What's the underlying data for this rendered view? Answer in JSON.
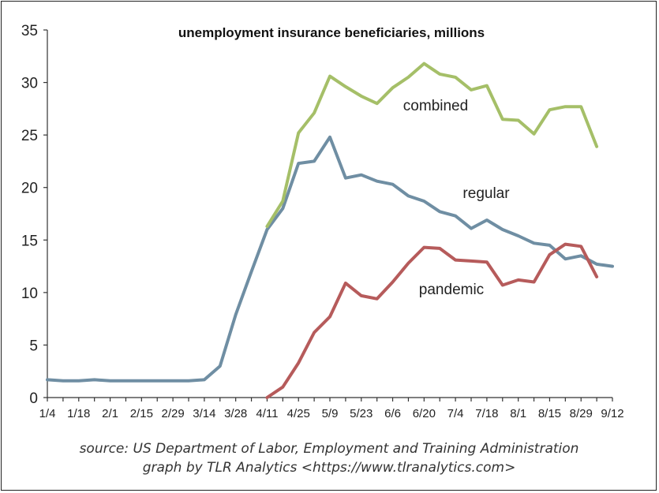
{
  "chart_data": {
    "type": "line",
    "title": "unemployment insurance beneficiaries, millions",
    "xlabel": "",
    "ylabel": "",
    "ylim": [
      0,
      35
    ],
    "yticks": [
      0,
      5,
      10,
      15,
      20,
      25,
      30,
      35
    ],
    "x_tick_labels": [
      "1/4",
      "1/18",
      "2/1",
      "2/15",
      "2/29",
      "3/14",
      "3/28",
      "4/11",
      "4/25",
      "5/9",
      "5/23",
      "6/6",
      "6/20",
      "7/4",
      "7/18",
      "8/1",
      "8/15",
      "8/29",
      "9/12"
    ],
    "grid": false,
    "legend": "none (series labeled inline)",
    "series": [
      {
        "name": "regular",
        "color": "#6f8ea3",
        "values": [
          1.7,
          1.6,
          1.6,
          1.7,
          1.6,
          1.6,
          1.6,
          1.6,
          1.6,
          1.6,
          1.7,
          3.0,
          7.9,
          12.0,
          16.0,
          18.0,
          22.3,
          22.5,
          24.8,
          20.9,
          21.2,
          20.6,
          20.3,
          19.2,
          18.7,
          17.7,
          17.3,
          16.1,
          16.9,
          16.0,
          15.4,
          14.7,
          14.5,
          13.2,
          13.5,
          12.7,
          12.5
        ],
        "start_index": 0
      },
      {
        "name": "combined",
        "color": "#a5bf68",
        "values": [
          16.3,
          18.7,
          25.2,
          27.1,
          30.6,
          29.6,
          28.7,
          28.0,
          29.5,
          30.5,
          31.8,
          30.8,
          30.5,
          29.3,
          29.7,
          26.5,
          26.4,
          25.1,
          27.4,
          27.7,
          27.7,
          23.9
        ],
        "start_index": 14
      },
      {
        "name": "pandemic",
        "color": "#b65b5b",
        "values": [
          0.0,
          1.0,
          3.3,
          6.2,
          7.7,
          10.9,
          9.7,
          9.4,
          11.0,
          12.8,
          14.3,
          14.2,
          13.1,
          13.0,
          12.9,
          10.7,
          11.2,
          11.0,
          13.6,
          14.6,
          14.4,
          11.5
        ],
        "start_index": 14
      }
    ],
    "source_line1": "source: US Department of Labor, Employment and Training Administration",
    "source_line2": "graph by TLR Analytics <https://www.tlranalytics.com>"
  }
}
